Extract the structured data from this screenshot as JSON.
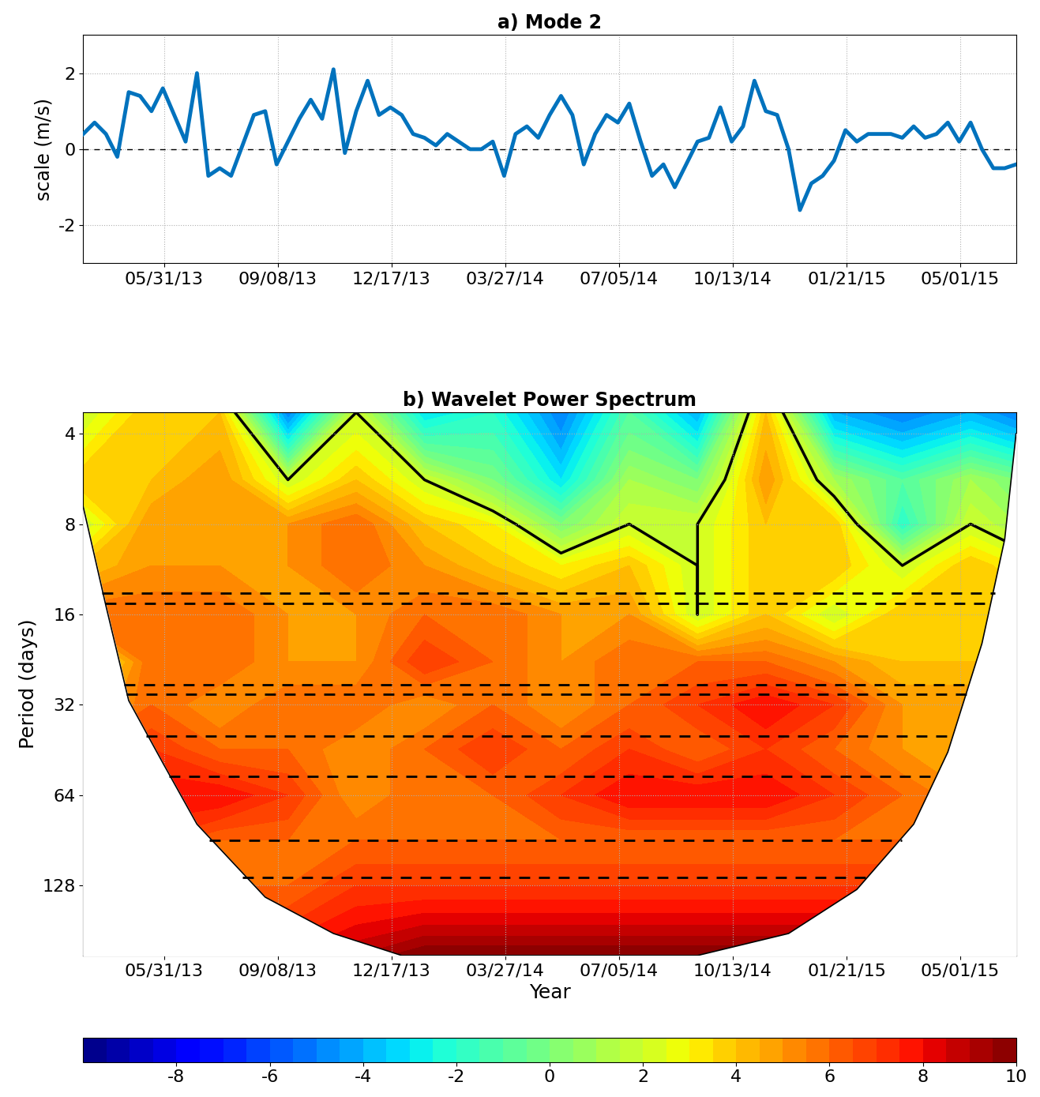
{
  "chart_data": [
    {
      "type": "line",
      "title": "a) Mode 2",
      "y_label": "scale (m/s)",
      "color": "#0072bd",
      "grid": true,
      "x": [
        "2013-03-21",
        "2013-03-31",
        "2013-04-10",
        "2013-04-20",
        "2013-04-30",
        "2013-05-10",
        "2013-05-20",
        "2013-05-30",
        "2013-06-09",
        "2013-06-19",
        "2013-06-29",
        "2013-07-09",
        "2013-07-19",
        "2013-07-29",
        "2013-08-08",
        "2013-08-18",
        "2013-08-28",
        "2013-09-07",
        "2013-09-17",
        "2013-09-27",
        "2013-10-07",
        "2013-10-17",
        "2013-10-27",
        "2013-11-06",
        "2013-11-16",
        "2013-11-26",
        "2013-12-06",
        "2013-12-16",
        "2013-12-26",
        "2014-01-05",
        "2014-01-15",
        "2014-01-25",
        "2014-02-04",
        "2014-02-14",
        "2014-02-24",
        "2014-03-06",
        "2014-03-16",
        "2014-03-26",
        "2014-04-05",
        "2014-04-15",
        "2014-04-25",
        "2014-05-05",
        "2014-05-15",
        "2014-05-25",
        "2014-06-04",
        "2014-06-14",
        "2014-06-24",
        "2014-07-04",
        "2014-07-14",
        "2014-07-24",
        "2014-08-03",
        "2014-08-13",
        "2014-08-23",
        "2014-09-02",
        "2014-09-12",
        "2014-09-22",
        "2014-10-02",
        "2014-10-12",
        "2014-10-22",
        "2014-11-01",
        "2014-11-11",
        "2014-11-21",
        "2014-12-01",
        "2014-12-11",
        "2014-12-21",
        "2014-12-31",
        "2015-01-10",
        "2015-01-20",
        "2015-01-30",
        "2015-02-09",
        "2015-02-19",
        "2015-03-01",
        "2015-03-11",
        "2015-03-21",
        "2015-03-31",
        "2015-04-10",
        "2015-04-20",
        "2015-04-30",
        "2015-05-10",
        "2015-05-20",
        "2015-05-30",
        "2015-06-09",
        "2015-06-19"
      ],
      "values": [
        0.4,
        0.7,
        0.4,
        -0.2,
        1.5,
        1.4,
        1.0,
        1.6,
        0.9,
        0.2,
        2.0,
        -0.7,
        -0.5,
        -0.7,
        0.1,
        0.9,
        1.0,
        -0.4,
        0.2,
        0.8,
        1.3,
        0.8,
        2.1,
        -0.1,
        1.0,
        1.8,
        0.9,
        1.1,
        0.9,
        0.4,
        0.3,
        0.1,
        0.4,
        0.2,
        0.0,
        0.0,
        0.2,
        -0.7,
        0.4,
        0.6,
        0.3,
        0.9,
        1.4,
        0.9,
        -0.4,
        0.4,
        0.9,
        0.7,
        1.2,
        0.2,
        -0.7,
        -0.4,
        -1.0,
        -0.4,
        0.2,
        0.3,
        1.1,
        0.2,
        0.6,
        1.8,
        1.0,
        0.9,
        0.0,
        -1.6,
        -0.9,
        -0.7,
        -0.3,
        0.5,
        0.2,
        0.4,
        0.4,
        0.4,
        0.3,
        0.6,
        0.3,
        0.4,
        0.7,
        0.2,
        0.7,
        0.0,
        -0.5,
        -0.5,
        -0.4
      ],
      "hline": 0,
      "xlim": [
        "2013-03-21",
        "2015-06-19"
      ],
      "xticks": [
        {
          "value": "2013-05-31",
          "label": "05/31/13"
        },
        {
          "value": "2013-09-08",
          "label": "09/08/13"
        },
        {
          "value": "2013-12-17",
          "label": "12/17/13"
        },
        {
          "value": "2014-03-27",
          "label": "03/27/14"
        },
        {
          "value": "2014-07-05",
          "label": "07/05/14"
        },
        {
          "value": "2014-10-13",
          "label": "10/13/14"
        },
        {
          "value": "2015-01-21",
          "label": "01/21/15"
        },
        {
          "value": "2015-05-01",
          "label": "05/01/15"
        }
      ],
      "ylim": [
        -3,
        3
      ],
      "yticks": [
        -2,
        0,
        2
      ]
    },
    {
      "type": "heatmap",
      "title": "b) Wavelet Power Spectrum",
      "x_label": "Year",
      "y_label": "Period (days)",
      "log": "y",
      "grid": true,
      "x": [
        "2013-03-21",
        "2013-05-20",
        "2013-07-19",
        "2013-09-17",
        "2013-11-16",
        "2014-01-15",
        "2014-03-16",
        "2014-05-15",
        "2014-07-14",
        "2014-09-12",
        "2014-11-11",
        "2015-01-10",
        "2015-03-11",
        "2015-05-10",
        "2015-06-19"
      ],
      "y": [
        3.4,
        5.7,
        8,
        11,
        16,
        23,
        32,
        45,
        64,
        90,
        128,
        219
      ],
      "values": [
        [
          2,
          4,
          4,
          -5,
          2,
          -3,
          -2,
          -5,
          -1,
          -4,
          4,
          -4,
          -5,
          -4,
          -5
        ],
        [
          4,
          4,
          5,
          2,
          4,
          2,
          0,
          -3,
          1,
          0,
          5,
          1,
          -1,
          1,
          0
        ],
        [
          2,
          5,
          5,
          5,
          6,
          4,
          3,
          0,
          2,
          2,
          4,
          4,
          -2,
          2,
          1
        ],
        [
          4,
          5,
          5,
          5,
          6,
          5,
          4,
          3,
          4,
          2,
          4,
          4,
          2,
          4,
          3
        ],
        [
          6,
          6,
          6,
          5,
          5,
          6,
          6,
          5,
          5,
          2,
          4,
          2,
          4,
          4,
          4
        ],
        [
          2,
          6,
          6,
          5,
          5,
          7,
          6,
          5,
          6,
          6,
          6,
          5,
          4,
          4,
          4
        ],
        [
          4,
          6,
          5,
          6,
          6,
          5,
          6,
          5,
          6,
          7,
          8,
          7,
          5,
          5,
          5
        ],
        [
          6,
          7,
          6,
          6,
          5,
          6,
          7,
          6,
          7,
          6,
          7,
          6,
          5,
          5,
          5
        ],
        [
          7,
          8,
          8,
          7,
          5,
          6,
          6,
          7,
          8,
          8,
          8,
          7,
          6,
          5,
          5
        ],
        [
          7,
          7,
          6,
          6,
          6,
          6,
          6,
          6,
          6,
          6,
          6,
          6,
          6,
          6,
          6
        ],
        [
          7,
          6,
          6,
          6,
          7,
          7,
          7,
          7,
          7,
          7,
          7,
          7,
          7,
          7,
          7
        ],
        [
          8,
          8,
          8,
          8,
          9,
          10,
          10,
          10,
          10,
          10,
          10,
          10,
          9,
          8,
          8
        ]
      ],
      "contour_level": 2,
      "cone_of_influence": {
        "x": [
          "2013-03-21",
          "2013-04-10",
          "2013-04-30",
          "2013-05-30",
          "2013-06-29",
          "2013-08-28",
          "2013-10-27",
          "2013-12-26",
          "2014-09-12",
          "2014-12-01",
          "2015-01-30",
          "2015-03-21",
          "2015-04-20",
          "2015-05-20",
          "2015-06-09",
          "2015-06-19"
        ],
        "period": [
          7,
          15,
          31,
          50,
          80,
          140,
          185,
          219,
          219,
          185,
          132,
          80,
          46,
          20,
          9,
          4
        ]
      },
      "dashed_periods": [
        13.6,
        14.7,
        27.4,
        29.5,
        40.8,
        55.4,
        90.5,
        120
      ],
      "xlim": [
        "2013-03-21",
        "2015-06-19"
      ],
      "xticks": [
        {
          "value": "2013-05-31",
          "label": "05/31/13"
        },
        {
          "value": "2013-09-08",
          "label": "09/08/13"
        },
        {
          "value": "2013-12-17",
          "label": "12/17/13"
        },
        {
          "value": "2014-03-27",
          "label": "03/27/14"
        },
        {
          "value": "2014-07-05",
          "label": "07/05/14"
        },
        {
          "value": "2014-10-13",
          "label": "10/13/14"
        },
        {
          "value": "2015-01-21",
          "label": "01/21/15"
        },
        {
          "value": "2015-05-01",
          "label": "05/01/15"
        }
      ],
      "ylim": [
        219,
        3.4
      ],
      "yticks": [
        4,
        8,
        16,
        32,
        64,
        128
      ],
      "colorbar_range": [
        -10,
        10
      ],
      "colorbar_ticks": [
        -8,
        -6,
        -4,
        -2,
        0,
        2,
        4,
        6,
        8,
        10
      ]
    }
  ]
}
